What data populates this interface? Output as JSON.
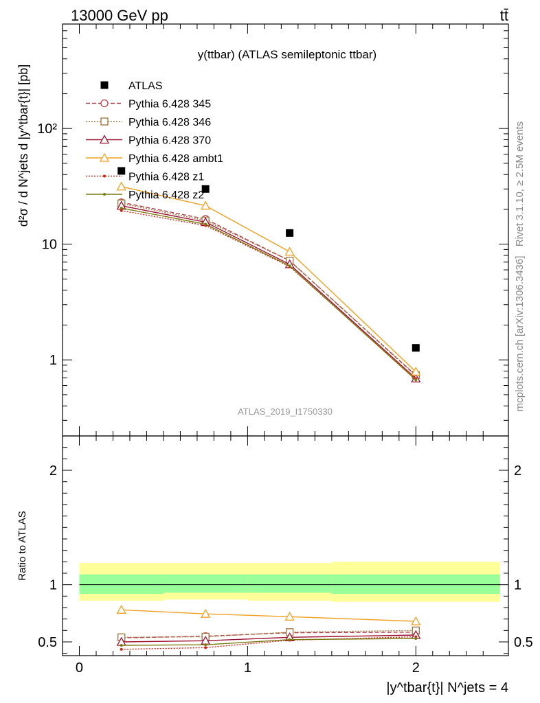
{
  "header": {
    "left_label": "13000 GeV pp",
    "right_label": "tt̄"
  },
  "side_labels": {
    "rivet": "Rivet 3.1.10, ≥ 2.5M events",
    "source": "mcplots.cern.ch [arXiv:1306.3436]"
  },
  "colors": {
    "atlas": "#000000",
    "p345": "#b5404a",
    "p346": "#a0703a",
    "p370": "#9b1030",
    "ambt1": "#f0a020",
    "z1": "#d02010",
    "z2": "#7a7a10",
    "band_outer": "#ffff99",
    "band_inner": "#99ff99"
  },
  "chart_data": [
    {
      "type": "line",
      "panel": "main",
      "title": "y(ttbar) (ATLAS semileptonic ttbar)",
      "ylabel": "d²σ / d N^jets d |y^tbar{t}| [pb]",
      "watermark": "ATLAS_2019_I1750330",
      "y_scale": "log",
      "ylim": [
        0.22,
        800
      ],
      "xlim": [
        -0.1,
        2.55
      ],
      "y_ticks": [
        {
          "value": 1,
          "label": "1"
        },
        {
          "value": 10,
          "label": "10"
        },
        {
          "value": 100,
          "label": "10²"
        }
      ],
      "legend_position": "top-left",
      "x": [
        0.25,
        0.75,
        1.25,
        2.0
      ],
      "series": [
        {
          "name": "ATLAS",
          "style": "marker",
          "values": [
            43,
            30,
            12.5,
            1.27
          ]
        },
        {
          "name": "Pythia 6.428 345",
          "style": "dashed",
          "marker": "circle",
          "values": [
            23,
            16.5,
            7.2,
            0.73
          ]
        },
        {
          "name": "Pythia 6.428 346",
          "style": "dotted",
          "marker": "square",
          "values": [
            22.5,
            16,
            7.2,
            0.74
          ]
        },
        {
          "name": "Pythia 6.428 370",
          "style": "solid",
          "marker": "triangle",
          "values": [
            21.5,
            15.5,
            6.7,
            0.69
          ]
        },
        {
          "name": "Pythia 6.428 ambt1",
          "style": "solid",
          "marker": "triangle",
          "values": [
            31.5,
            21.5,
            8.6,
            0.79
          ]
        },
        {
          "name": "Pythia 6.428 z1",
          "style": "dotted",
          "marker": "dot",
          "values": [
            19.5,
            14.5,
            6.4,
            0.69
          ]
        },
        {
          "name": "Pythia 6.428 z2",
          "style": "solid",
          "marker": "dot",
          "values": [
            20.5,
            14.9,
            6.5,
            0.67
          ]
        }
      ]
    },
    {
      "type": "line",
      "panel": "ratio",
      "ylabel": "Ratio to ATLAS",
      "xlabel": "|y^tbar{t}| N^jets = 4",
      "xlim": [
        -0.1,
        2.55
      ],
      "ylim": [
        0.38,
        2.3
      ],
      "x_ticks": [
        0,
        1,
        2
      ],
      "y_ticks": [
        0.5,
        1,
        2
      ],
      "band_edges": [
        0,
        0.5,
        1,
        1.5,
        2.5
      ],
      "band_inner": [
        [
          0.92,
          1.09
        ],
        [
          0.93,
          1.09
        ],
        [
          0.93,
          1.09
        ],
        [
          0.92,
          1.09
        ]
      ],
      "band_outer": [
        [
          0.86,
          1.19
        ],
        [
          0.87,
          1.19
        ],
        [
          0.86,
          1.19
        ],
        [
          0.85,
          1.2
        ]
      ],
      "x": [
        0.25,
        0.75,
        1.25,
        2.0
      ],
      "series": [
        {
          "name": "Pythia 6.428 345",
          "values": [
            0.535,
            0.55,
            0.58,
            0.585
          ]
        },
        {
          "name": "Pythia 6.428 346",
          "values": [
            0.54,
            0.545,
            0.585,
            0.6
          ]
        },
        {
          "name": "Pythia 6.428 370",
          "values": [
            0.5,
            0.51,
            0.54,
            0.56
          ]
        },
        {
          "name": "Pythia 6.428 ambt1",
          "values": [
            0.78,
            0.745,
            0.72,
            0.68
          ]
        },
        {
          "name": "Pythia 6.428 z1",
          "values": [
            0.435,
            0.45,
            0.515,
            0.545
          ]
        },
        {
          "name": "Pythia 6.428 z2",
          "values": [
            0.47,
            0.475,
            0.52,
            0.53
          ]
        }
      ]
    }
  ]
}
